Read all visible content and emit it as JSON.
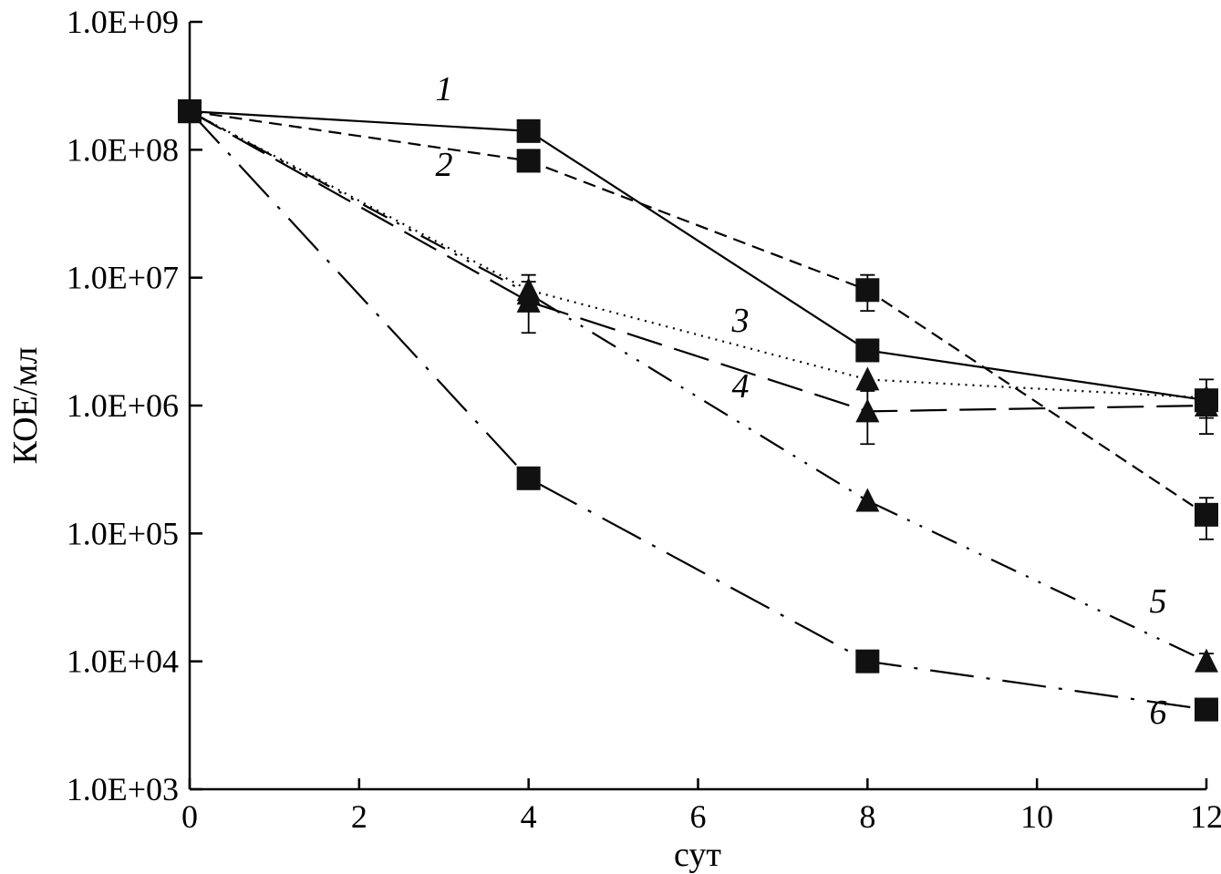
{
  "chart_data": {
    "type": "line",
    "xlabel": "сут",
    "ylabel": "КОЕ/мл",
    "xlim": [
      0,
      12
    ],
    "ylim": [
      1000,
      1000000000
    ],
    "y_scale": "log",
    "x_ticks": [
      "0",
      "2",
      "4",
      "6",
      "8",
      "10",
      "12"
    ],
    "y_ticks": [
      "1.0E+03",
      "1.0E+04",
      "1.0E+05",
      "1.0E+06",
      "1.0E+07",
      "1.0E+08",
      "1.0E+09"
    ],
    "grid": false,
    "series": [
      {
        "name": "1",
        "marker": "square",
        "line_style": "solid",
        "x": [
          0,
          4,
          8,
          12
        ],
        "y": [
          200000000,
          140000000,
          2700000,
          1100000
        ],
        "err": [
          0,
          0,
          0,
          500000
        ]
      },
      {
        "name": "2",
        "marker": "square",
        "line_style": "dashed",
        "x": [
          0,
          4,
          8,
          12
        ],
        "y": [
          200000000,
          82000000,
          8000000,
          140000
        ],
        "err": [
          0,
          0,
          2500000,
          50000
        ]
      },
      {
        "name": "3",
        "marker": "triangle",
        "line_style": "dotted",
        "x": [
          0,
          4,
          8,
          12
        ],
        "y": [
          200000000,
          8000000,
          1600000,
          1150000
        ],
        "err": [
          0,
          2500000,
          0,
          0
        ]
      },
      {
        "name": "4",
        "marker": "triangle",
        "line_style": "long-dashed",
        "x": [
          0,
          4,
          8,
          12
        ],
        "y": [
          200000000,
          6500000,
          900000,
          1000000
        ],
        "err": [
          0,
          2800000,
          400000,
          200000
        ]
      },
      {
        "name": "5",
        "marker": "triangle",
        "line_style": "dash-dot-dot",
        "x": [
          0,
          4,
          8,
          12
        ],
        "y": [
          200000000,
          7500000,
          180000,
          10000
        ],
        "err": [
          0,
          0,
          0,
          1500
        ]
      },
      {
        "name": "6",
        "marker": "square",
        "line_style": "long-dash-dot",
        "x": [
          0,
          4,
          8,
          12
        ],
        "y": [
          200000000,
          270000,
          10000,
          4200
        ],
        "err": [
          0,
          0,
          1200,
          700
        ]
      }
    ]
  }
}
